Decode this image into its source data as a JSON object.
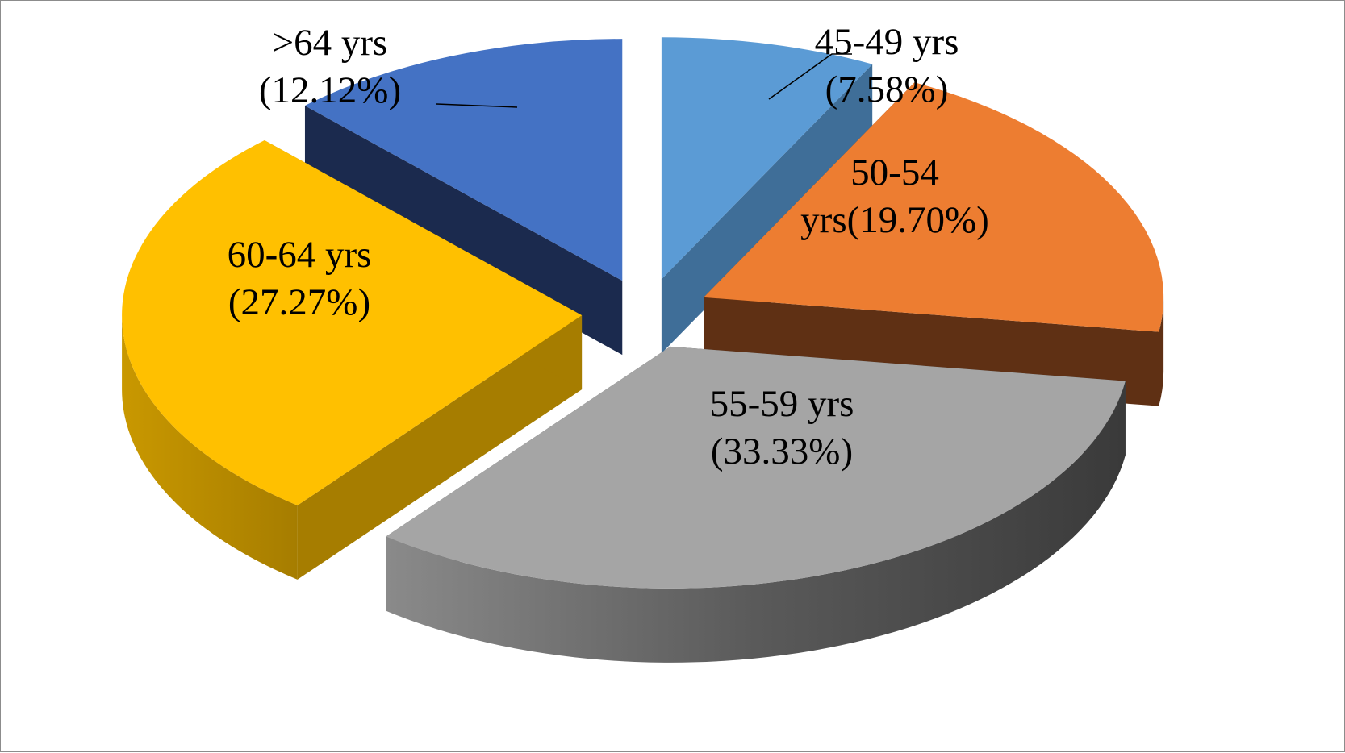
{
  "chart_data": {
    "type": "pie",
    "style": "3d-exploded",
    "title": "",
    "legend": "none",
    "slices": [
      {
        "name": "45-49 yrs",
        "value": 7.58,
        "label": [
          "45-49 yrs",
          "(7.58%)"
        ],
        "color": "#5b9bd5",
        "side_color": "#3f6e98"
      },
      {
        "name": "50-54 yrs",
        "value": 19.7,
        "label": [
          "50-54",
          "yrs(19.70%)"
        ],
        "color": "#ed7d31",
        "side_color": "#5f3014"
      },
      {
        "name": "55-59 yrs",
        "value": 33.33,
        "label": [
          "55-59 yrs",
          "(33.33%)"
        ],
        "color": "#a5a5a5",
        "side_color": "#444444"
      },
      {
        "name": "60-64 yrs",
        "value": 27.27,
        "label": [
          "60-64 yrs",
          "(27.27%)"
        ],
        "color": "#ffc000",
        "side_color": "#a67d00"
      },
      {
        "name": ">64 yrs",
        "value": 12.12,
        "label": [
          ">64 yrs",
          "(12.12%)"
        ],
        "color": "#4472c4",
        "side_color": "#1b2a4e"
      }
    ]
  }
}
